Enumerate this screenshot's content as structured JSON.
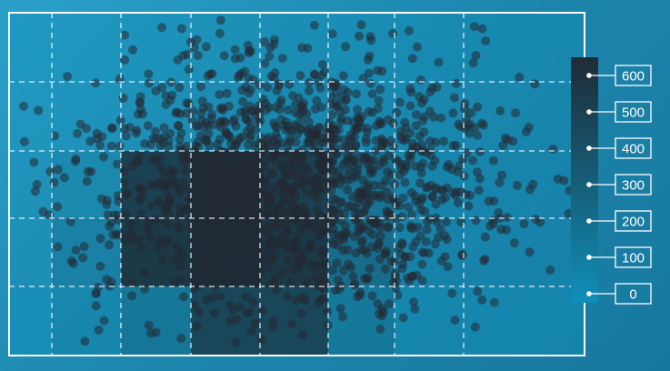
{
  "chart_data": {
    "type": "heatmap",
    "title": "",
    "xlabel": "",
    "ylabel": "",
    "grid": true,
    "columns": 8,
    "rows": 4,
    "counts": [
      [
        5,
        20,
        40,
        70,
        70,
        20,
        5,
        0
      ],
      [
        30,
        130,
        520,
        700,
        520,
        260,
        60,
        10
      ],
      [
        25,
        180,
        560,
        660,
        560,
        300,
        70,
        10
      ],
      [
        10,
        120,
        280,
        620,
        620,
        250,
        40,
        5
      ]
    ],
    "colorbar": {
      "ticks": [
        "600",
        "500",
        "400",
        "300",
        "200",
        "100",
        "0"
      ],
      "min": 0,
      "max": 650,
      "color_low": "#0f8fb8",
      "color_high": "#1e2b36"
    },
    "scatter": {
      "point_color": "#222a33",
      "point_opacity": 0.55,
      "count": 1500
    },
    "frame_color": "#ffffff",
    "background_color": "#2294bf"
  }
}
